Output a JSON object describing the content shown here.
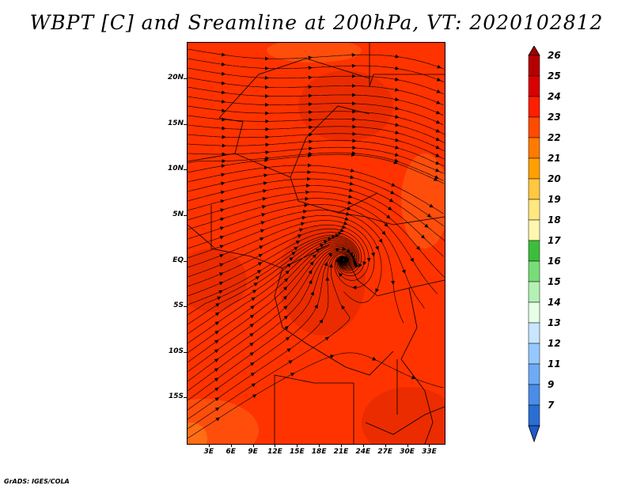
{
  "title": "WBPT [C] and Sreamline at 200hPa, VT: 2020102812",
  "footer": "GrADS: IGES/COLA",
  "map": {
    "lon_range": [
      0,
      35
    ],
    "lat_range": [
      -20,
      24
    ],
    "y_ticks": [
      {
        "label": "20N",
        "lat": 20
      },
      {
        "label": "15N",
        "lat": 15
      },
      {
        "label": "10N",
        "lat": 10
      },
      {
        "label": "5N",
        "lat": 5
      },
      {
        "label": "EQ",
        "lat": 0
      },
      {
        "label": "5S",
        "lat": -5
      },
      {
        "label": "10S",
        "lat": -10
      },
      {
        "label": "15S",
        "lat": -15
      }
    ],
    "x_ticks": [
      {
        "label": "3E",
        "lon": 3
      },
      {
        "label": "6E",
        "lon": 6
      },
      {
        "label": "9E",
        "lon": 9
      },
      {
        "label": "12E",
        "lon": 12
      },
      {
        "label": "15E",
        "lon": 15
      },
      {
        "label": "18E",
        "lon": 18
      },
      {
        "label": "21E",
        "lon": 21
      },
      {
        "label": "24E",
        "lon": 24
      },
      {
        "label": "27E",
        "lon": 27
      },
      {
        "label": "30E",
        "lon": 30
      },
      {
        "label": "33E",
        "lon": 33
      }
    ],
    "fill_colors": {
      "base": "#ff3300",
      "warm": "#e32a00",
      "cool": "#ff5a10",
      "edge": "#ff7a1a"
    }
  },
  "legend": {
    "levels": [
      {
        "label": "26",
        "color": "#b40000"
      },
      {
        "label": "25",
        "color": "#d80000"
      },
      {
        "label": "24",
        "color": "#ff1e00"
      },
      {
        "label": "23",
        "color": "#ff4a00"
      },
      {
        "label": "22",
        "color": "#ff7a00"
      },
      {
        "label": "21",
        "color": "#ffa000"
      },
      {
        "label": "20",
        "color": "#ffc840"
      },
      {
        "label": "19",
        "color": "#ffe880"
      },
      {
        "label": "18",
        "color": "#fff6b0"
      },
      {
        "label": "17",
        "color": "#3cbe3c"
      },
      {
        "label": "16",
        "color": "#78dc78"
      },
      {
        "label": "15",
        "color": "#b4f0b4"
      },
      {
        "label": "14",
        "color": "#e6ffe6"
      },
      {
        "label": "13",
        "color": "#c8e6ff"
      },
      {
        "label": "12",
        "color": "#96c8ff"
      },
      {
        "label": "11",
        "color": "#6eaaf5"
      },
      {
        "label": "9",
        "color": "#4b8ce6"
      },
      {
        "label": "7",
        "color": "#2a6ed2"
      }
    ],
    "bottom_color": "#1e5ac8",
    "top_color": "#a00000"
  }
}
